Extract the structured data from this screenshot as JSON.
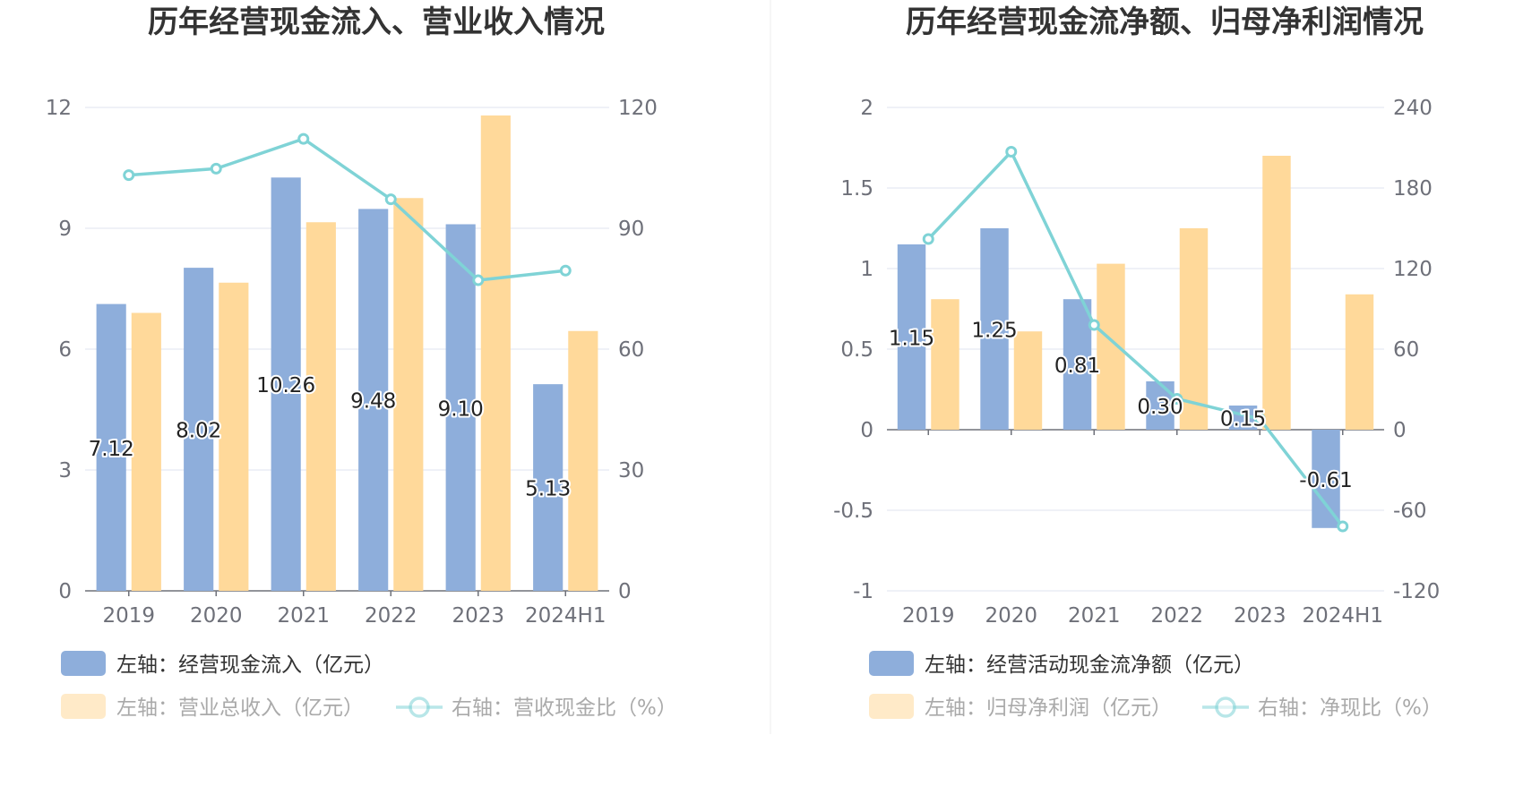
{
  "colors": {
    "bar_left": "#8eaedb",
    "bar_right": "#ffd99a",
    "line": "#7fd3d6",
    "legend_dim_text": "#aaaaaa",
    "legend_text": "#333333",
    "grid": "#dfe3ef",
    "divider": "#eeeeee"
  },
  "chart_data": [
    {
      "type": "bar+line",
      "title": "历年经营现金流入、营业收入情况",
      "categories": [
        "2019",
        "2020",
        "2021",
        "2022",
        "2023",
        "2024H1"
      ],
      "left_axis": {
        "ylim": [
          0,
          12
        ],
        "ticks": [
          "0",
          "3",
          "6",
          "9",
          "12"
        ]
      },
      "right_axis": {
        "ylim": [
          0,
          120
        ],
        "ticks": [
          "0",
          "30",
          "60",
          "90",
          "120"
        ]
      },
      "series": [
        {
          "name": "左轴：经营现金流入（亿元）",
          "type": "bar",
          "axis": "left",
          "values": [
            7.12,
            8.02,
            10.26,
            9.48,
            9.1,
            5.13
          ],
          "labels": [
            "7.12",
            "8.02",
            "10.26",
            "9.48",
            "9.10",
            "5.13"
          ]
        },
        {
          "name": "左轴：营业总收入（亿元）",
          "type": "bar",
          "axis": "left",
          "values": [
            6.9,
            7.65,
            9.15,
            9.75,
            11.8,
            6.45
          ]
        },
        {
          "name": "右轴：营收现金比（%）",
          "type": "line",
          "axis": "right",
          "values": [
            103.2,
            104.8,
            112.2,
            97.2,
            77.1,
            79.5
          ]
        }
      ]
    },
    {
      "type": "bar+line",
      "title": "历年经营现金流净额、归母净利润情况",
      "categories": [
        "2019",
        "2020",
        "2021",
        "2022",
        "2023",
        "2024H1"
      ],
      "left_axis": {
        "ylim": [
          -1,
          2
        ],
        "ticks": [
          "-1",
          "-0.5",
          "0",
          "0.5",
          "1",
          "1.5",
          "2"
        ]
      },
      "right_axis": {
        "ylim": [
          -120,
          240
        ],
        "ticks": [
          "-120",
          "-60",
          "0",
          "60",
          "120",
          "180",
          "240"
        ]
      },
      "series": [
        {
          "name": "左轴：经营活动现金流净额（亿元）",
          "type": "bar",
          "axis": "left",
          "values": [
            1.15,
            1.25,
            0.81,
            0.3,
            0.15,
            -0.61
          ],
          "labels": [
            "1.15",
            "1.25",
            "0.81",
            "0.30",
            "0.15",
            "-0.61"
          ]
        },
        {
          "name": "左轴：归母净利润（亿元）",
          "type": "bar",
          "axis": "left",
          "values": [
            0.81,
            0.61,
            1.03,
            1.25,
            1.7,
            0.84
          ]
        },
        {
          "name": "右轴：净现比（%）",
          "type": "line",
          "axis": "right",
          "values": [
            142,
            207,
            78,
            23,
            8,
            -72
          ]
        }
      ]
    }
  ]
}
